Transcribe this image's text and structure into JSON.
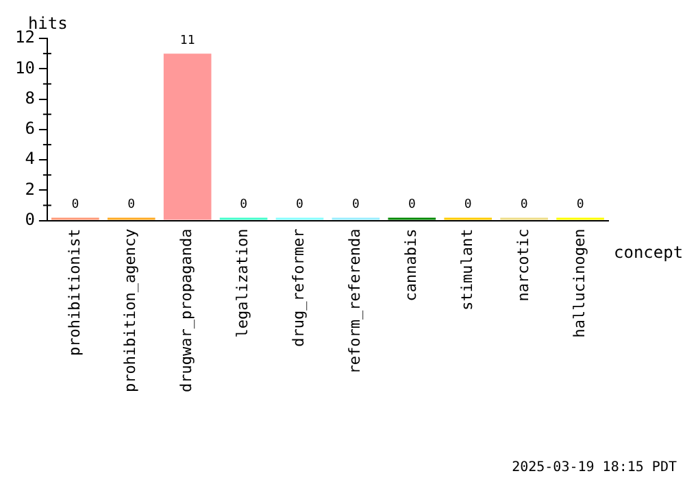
{
  "chart_data": {
    "type": "bar",
    "ylabel": "hits",
    "xlabel": "concept",
    "categories": [
      "prohibitionist",
      "prohibition_agency",
      "drugwar_propaganda",
      "legalization",
      "drug_reformer",
      "reform_referenda",
      "cannabis",
      "stimulant",
      "narcotic",
      "hallucinogen"
    ],
    "values": [
      0,
      0,
      11,
      0,
      0,
      0,
      0,
      0,
      0,
      0
    ],
    "colors": [
      "#ff9977",
      "#ffaa22",
      "#ff9999",
      "#44ffcc",
      "#88ffff",
      "#99eeff",
      "#008800",
      "#ffcc00",
      "#eedd88",
      "#ffff00"
    ],
    "ylim": [
      0,
      12
    ],
    "yticks": [
      0,
      2,
      4,
      6,
      8,
      10,
      12
    ],
    "grid": false,
    "legend": false,
    "data_labels": true,
    "annotations": [
      "2025-03-19 18:15 PDT"
    ]
  }
}
